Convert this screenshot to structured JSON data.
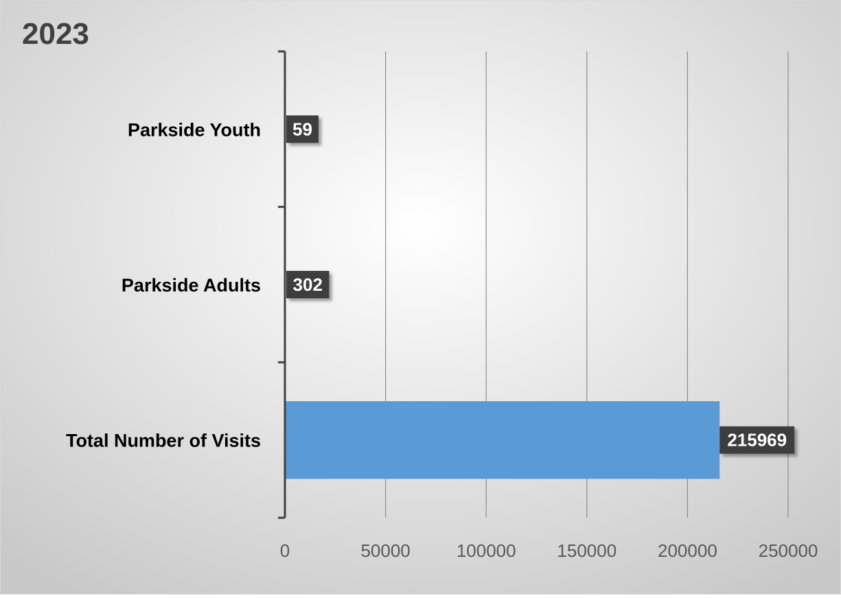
{
  "chart_data": {
    "type": "bar",
    "orientation": "horizontal",
    "title": "2023",
    "categories": [
      "Parkside Youth",
      "Parkside Adults",
      "Total Number of Visits"
    ],
    "values": [
      59,
      302,
      215969
    ],
    "data_labels": [
      "59",
      "302",
      "215969"
    ],
    "xlim": [
      0,
      250000
    ],
    "x_ticks": [
      "0",
      "50000",
      "100000",
      "150000",
      "200000",
      "250000"
    ],
    "xlabel": "",
    "ylabel": "",
    "grid": "vertical",
    "legend": "none",
    "colors": {
      "bar": "#5b9bd5",
      "label_bg": "#3a3a3a",
      "label_text": "#ffffff",
      "gridline": "#8c8c8c",
      "axis": "#404040",
      "text": "#000000",
      "tick_text": "#595959",
      "background_light": "#ffffff",
      "background_dark": "#c8c8c8"
    }
  }
}
